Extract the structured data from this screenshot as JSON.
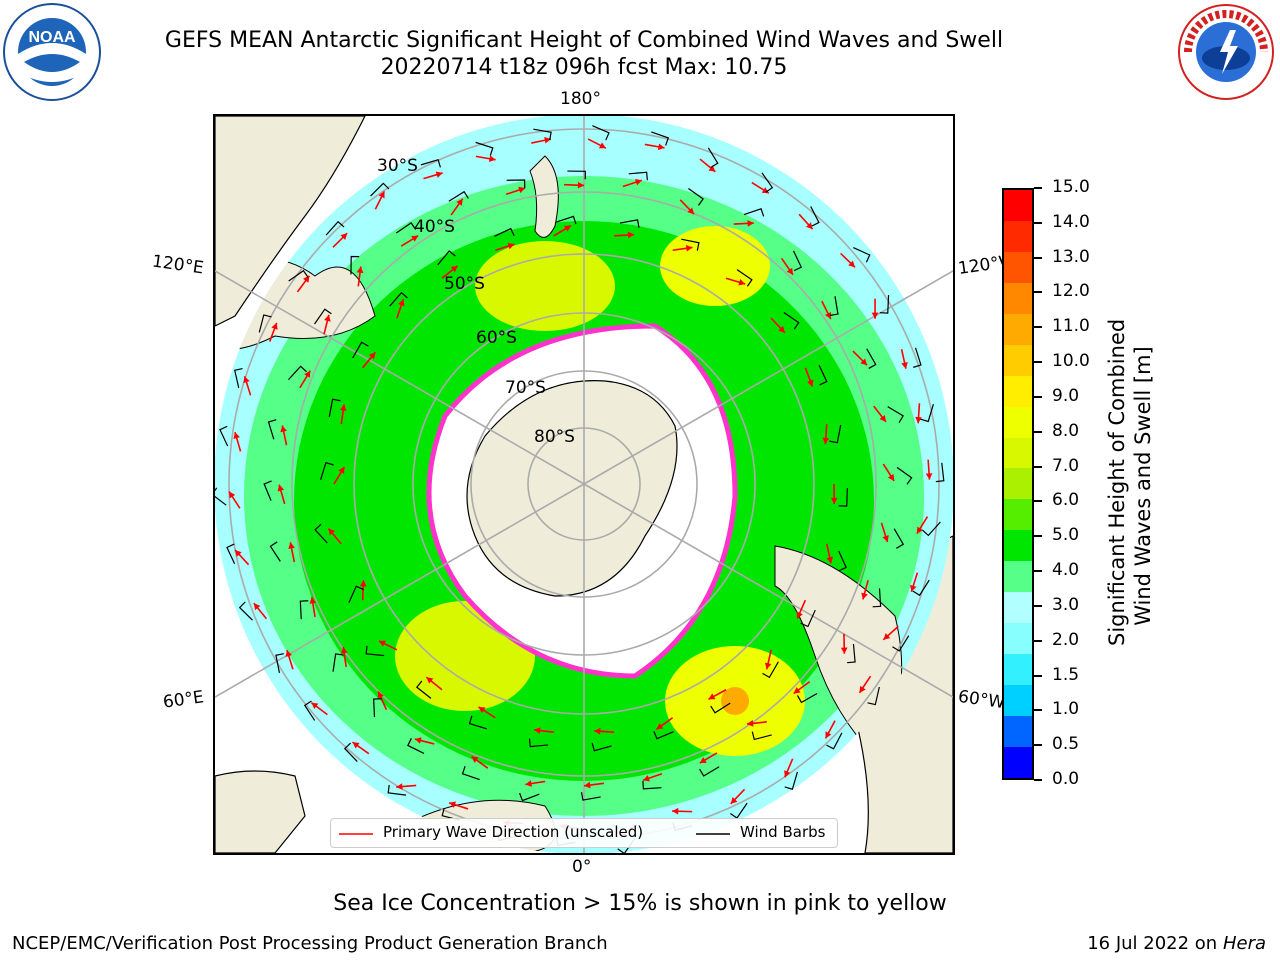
{
  "header": {
    "title_line1": "GEFS MEAN Antarctic Significant Height of Combined Wind Waves and Swell",
    "title_line2": "20220714 t18z 096h fcst   Max: 10.75"
  },
  "logos": {
    "noaa": "NOAA",
    "nws": "NATIONAL WEATHER SERVICE"
  },
  "map": {
    "longitude_labels": {
      "top": "180°",
      "bottom": "0°",
      "upper_left": "120°E",
      "upper_right": "120°W",
      "lower_left": "60°E",
      "lower_right": "60°W"
    },
    "latitude_labels": [
      "30°S",
      "40°S",
      "50°S",
      "60°S",
      "70°S",
      "80°S"
    ],
    "projection": "south-polar-stereographic",
    "max_wave_height_m": 10.75
  },
  "legend": {
    "wave_direction_label": "Primary Wave Direction (unscaled)",
    "wind_barbs_label": "Wind Barbs",
    "wave_direction_color": "#ff0000",
    "wind_barbs_color": "#000000"
  },
  "colorbar": {
    "label_line1": "Significant Height of Combined",
    "label_line2": "Wind Waves and Swell [m]",
    "ticks": [
      "15.0",
      "14.0",
      "13.0",
      "12.0",
      "11.0",
      "10.0",
      "9.0",
      "8.0",
      "7.0",
      "6.0",
      "5.0",
      "4.0",
      "3.0",
      "2.0",
      "1.5",
      "1.0",
      "0.5",
      "0.0"
    ],
    "colors_bottom_to_top": [
      "#0000ff",
      "#0066ff",
      "#00d0ff",
      "#33f0ff",
      "#88ffff",
      "#b2ffff",
      "#55ff88",
      "#00e600",
      "#55ee00",
      "#aaf000",
      "#d8f800",
      "#eeff00",
      "#ffee00",
      "#ffcc00",
      "#ffaa00",
      "#ff8800",
      "#ff5500",
      "#ff2a00",
      "#ff0000"
    ]
  },
  "footer": {
    "sea_ice_note": "Sea Ice Concentration > 15% is shown in pink to yellow",
    "credit": "NCEP/EMC/Verification Post Processing Product Generation Branch",
    "date": "16 Jul 2022 on ",
    "machine": "Hera"
  }
}
